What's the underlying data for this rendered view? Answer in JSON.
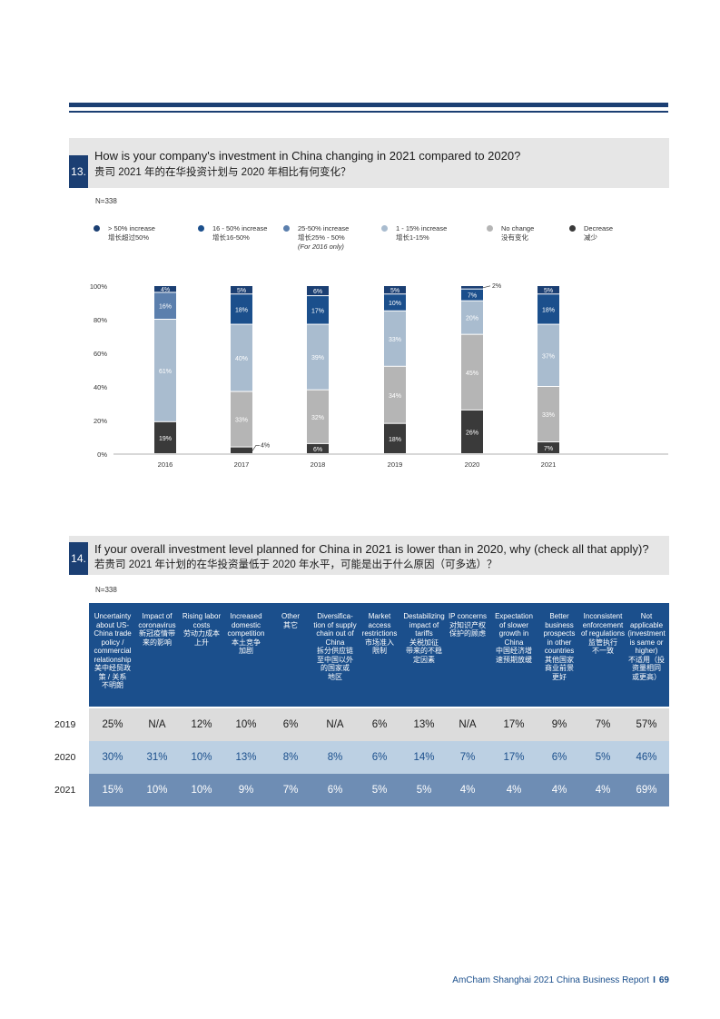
{
  "colors": {
    "navy": "#1b3f73",
    "blue": "#1b4f8c",
    "mid_blue": "#5b7fad",
    "light_blue": "#a9bccf",
    "gray": "#b5b5b5",
    "dark": "#3a3a3a",
    "row1": "#dcdcdc",
    "row2": "#bcd0e3",
    "row3": "#6e8db4"
  },
  "q13": {
    "number": "13.",
    "title_en": "How is your company's investment in China changing in 2021 compared to 2020?",
    "title_zh": "贵司 2021 年的在华投资计划与 2020 年相比有何变化？",
    "n_label": "N=338",
    "legend": [
      {
        "key": "gt50",
        "icon": "dot-icon",
        "label": "> 50% increase",
        "label_zh": "增长超过50%",
        "color": "#1b3f73",
        "note": ""
      },
      {
        "key": "16_50",
        "icon": "dot-icon",
        "label": "16 - 50% increase",
        "label_zh": "增长16-50%",
        "color": "#1b4f8c",
        "note": ""
      },
      {
        "key": "25_50",
        "icon": "dot-icon",
        "label": "25-50% increase",
        "label_zh": "增长25% - 50%",
        "color": "#5b7fad",
        "note": "(For 2016 only)"
      },
      {
        "key": "1_15",
        "icon": "dot-icon",
        "label": "1 - 15% increase",
        "label_zh": "增长1-15%",
        "color": "#a9bccf",
        "note": ""
      },
      {
        "key": "nochange",
        "icon": "dot-icon",
        "label": "No change",
        "label_zh": "没有变化",
        "color": "#b5b5b5",
        "note": ""
      },
      {
        "key": "decrease",
        "icon": "dot-icon",
        "label": "Decrease",
        "label_zh": "减少",
        "color": "#3a3a3a",
        "note": ""
      }
    ]
  },
  "chart_data": {
    "type": "bar",
    "stacked": true,
    "title": "How is your company's investment in China changing in 2021 compared to 2020?",
    "xlabel": "",
    "ylabel": "",
    "ylim": [
      0,
      100
    ],
    "y_ticks": [
      "0%",
      "20%",
      "40%",
      "60%",
      "80%",
      "100%"
    ],
    "categories": [
      "2016",
      "2017",
      "2018",
      "2019",
      "2020",
      "2021"
    ],
    "series": [
      {
        "name": "Decrease",
        "color": "#3a3a3a",
        "values": [
          19,
          4,
          6,
          18,
          26,
          7
        ],
        "labels": [
          "19%",
          "4%",
          "6%",
          "18%",
          "26%",
          "7%"
        ]
      },
      {
        "name": "No change",
        "color": "#b5b5b5",
        "values": [
          0,
          33,
          32,
          34,
          45,
          33
        ],
        "labels": [
          "",
          "33%",
          "32%",
          "34%",
          "45%",
          "33%"
        ]
      },
      {
        "name": "1 - 15% increase",
        "color": "#a9bccf",
        "values": [
          61,
          40,
          39,
          33,
          20,
          37
        ],
        "labels": [
          "61%",
          "40%",
          "39%",
          "33%",
          "20%",
          "37%"
        ]
      },
      {
        "name": "25-50% increase",
        "color": "#5b7fad",
        "values": [
          16,
          0,
          0,
          0,
          0,
          0
        ],
        "labels": [
          "16%",
          "",
          "",
          "",
          "",
          ""
        ]
      },
      {
        "name": "16 - 50% increase",
        "color": "#1b4f8c",
        "values": [
          0,
          18,
          17,
          10,
          7,
          18
        ],
        "labels": [
          "",
          "18%",
          "17%",
          "10%",
          "7%",
          "18%"
        ]
      },
      {
        "name": "> 50% increase",
        "color": "#1b3f73",
        "values": [
          4,
          5,
          6,
          5,
          2,
          5
        ],
        "labels": [
          "4%",
          "5%",
          "6%",
          "5%",
          "2%",
          "5%"
        ]
      }
    ],
    "callouts": [
      {
        "category": "2017",
        "series": "Decrease",
        "label": "4%"
      },
      {
        "category": "2020",
        "series": "> 50% increase",
        "label": "2%"
      }
    ]
  },
  "q14": {
    "number": "14.",
    "title_en": "If your overall investment level planned for China in 2021 is lower than in 2020, why (check all that apply)?",
    "title_zh": "若贵司 2021 年计划的在华投资量低于 2020 年水平，可能是出于什么原因（可多选）？",
    "n_label": "N=338",
    "headers": [
      "Uncertainty\nabout US-\nChina trade\npolicy /\ncommercial\nrelationship\n美中经贸政\n策 / 关系\n不明朗",
      "Impact of\ncoronavirus\n新冠疫情带\n来的影响",
      "Rising labor\ncosts\n劳动力成本\n上升",
      "Increased\ndomestic\ncompetition\n本土竞争\n加剧",
      "Other\n其它",
      "Diversifica-\ntion of supply\nchain out of\nChina\n拆分供应链\n至中国以外\n的国家或\n地区",
      "Market\naccess\nrestrictions\n市场准入\n限制",
      "Destabilizing\nimpact of\ntariffs\n关税加征\n带来的不稳\n定因素",
      "IP concerns\n对知识产权\n保护的顾虑",
      "Expectation\nof slower\ngrowth in\nChina\n中国经济增\n速预期放缓",
      "Better\nbusiness\nprospects\nin other\ncountries\n其他国家\n商业前景\n更好",
      "Inconsistent\nenforcement\nof regulations\n监管执行\n不一致",
      "Not\napplicable\n(investment\nis same or\nhigher)\n不适用（投\n资量相同\n或更高）"
    ],
    "rows": [
      {
        "year": "2019",
        "values": [
          "25%",
          "N/A",
          "12%",
          "10%",
          "6%",
          "N/A",
          "6%",
          "13%",
          "N/A",
          "17%",
          "9%",
          "7%",
          "57%"
        ]
      },
      {
        "year": "2020",
        "values": [
          "30%",
          "31%",
          "10%",
          "13%",
          "8%",
          "8%",
          "6%",
          "14%",
          "7%",
          "17%",
          "6%",
          "5%",
          "46%"
        ]
      },
      {
        "year": "2021",
        "values": [
          "15%",
          "10%",
          "10%",
          "9%",
          "7%",
          "6%",
          "5%",
          "5%",
          "4%",
          "4%",
          "4%",
          "4%",
          "69%"
        ]
      }
    ]
  },
  "footer": {
    "report": "AmCham Shanghai 2021 China Business Report",
    "separator": "I",
    "page": "69"
  }
}
